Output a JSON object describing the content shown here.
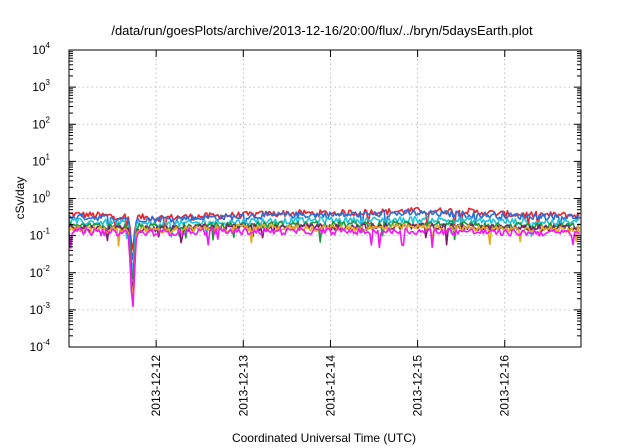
{
  "chart_data": {
    "type": "line",
    "title": "/data/run/goesPlots/archive/2013-12-16/20:00/flux/../bryn/5daysEarth.plot",
    "xlabel": "Coordinated Universal Time (UTC)",
    "ylabel": "cSv/day",
    "yscale": "log",
    "ylim": [
      0.0001,
      10000
    ],
    "y_ticks": [
      {
        "base": "10",
        "exp": "-4",
        "value": 0.0001
      },
      {
        "base": "10",
        "exp": "-3",
        "value": 0.001
      },
      {
        "base": "10",
        "exp": "-2",
        "value": 0.01
      },
      {
        "base": "10",
        "exp": "-1",
        "value": 0.1
      },
      {
        "base": "10",
        "exp": "0",
        "value": 1
      },
      {
        "base": "10",
        "exp": "1",
        "value": 10
      },
      {
        "base": "10",
        "exp": "2",
        "value": 100
      },
      {
        "base": "10",
        "exp": "3",
        "value": 1000
      },
      {
        "base": "10",
        "exp": "4",
        "value": 10000
      }
    ],
    "xlim": [
      "2013-12-11T00:00",
      "2013-12-16T21:00"
    ],
    "x_ticks": [
      "2013-12-12",
      "2013-12-13",
      "2013-12-14",
      "2013-12-15",
      "2013-12-16"
    ],
    "grid": true,
    "legend": "none",
    "x": [
      "2013-12-11T00:00",
      "2013-12-11T12:00",
      "2013-12-12T00:00",
      "2013-12-12T12:00",
      "2013-12-13T00:00",
      "2013-12-13T12:00",
      "2013-12-14T00:00",
      "2013-12-14T12:00",
      "2013-12-15T00:00",
      "2013-12-15T12:00",
      "2013-12-16T00:00",
      "2013-12-16T12:00",
      "2013-12-16T21:00"
    ],
    "series": [
      {
        "color": "#e8242a",
        "values": [
          0.38,
          0.34,
          0.3,
          0.33,
          0.36,
          0.4,
          0.4,
          0.43,
          0.47,
          0.46,
          0.38,
          0.36,
          0.35
        ]
      },
      {
        "color": "#2a6ed8",
        "values": [
          0.33,
          0.3,
          0.28,
          0.3,
          0.33,
          0.36,
          0.36,
          0.38,
          0.4,
          0.38,
          0.34,
          0.33,
          0.32
        ]
      },
      {
        "color": "#22c4d8",
        "values": [
          0.24,
          0.22,
          0.2,
          0.22,
          0.24,
          0.25,
          0.26,
          0.26,
          0.27,
          0.26,
          0.24,
          0.23,
          0.23
        ]
      },
      {
        "color": "#1a9a3a",
        "values": [
          0.19,
          0.18,
          0.17,
          0.18,
          0.19,
          0.2,
          0.2,
          0.2,
          0.21,
          0.2,
          0.19,
          0.18,
          0.18
        ]
      },
      {
        "color": "#7a1f6a",
        "values": [
          0.16,
          0.15,
          0.15,
          0.16,
          0.17,
          0.17,
          0.17,
          0.17,
          0.18,
          0.17,
          0.16,
          0.16,
          0.16
        ]
      },
      {
        "color": "#e6a91a",
        "values": [
          0.15,
          0.14,
          0.14,
          0.15,
          0.16,
          0.16,
          0.16,
          0.16,
          0.17,
          0.16,
          0.15,
          0.15,
          0.15
        ]
      },
      {
        "color": "#f416f4",
        "values": [
          0.13,
          0.12,
          0.12,
          0.13,
          0.13,
          0.13,
          0.13,
          0.13,
          0.13,
          0.13,
          0.12,
          0.12,
          0.12
        ]
      }
    ],
    "annotations": [
      {
        "series_color": "#f416f4",
        "x": "2013-12-11T17:30",
        "y": 0.0007,
        "note_kind": "dip"
      }
    ]
  }
}
